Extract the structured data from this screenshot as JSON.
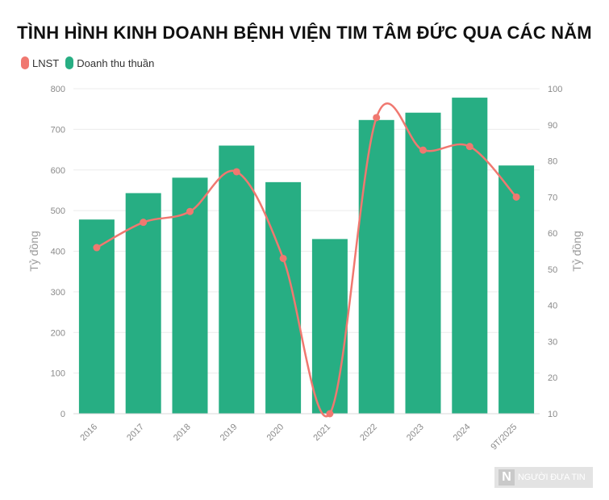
{
  "chart_data": {
    "type": "bar",
    "title": "TÌNH HÌNH KINH DOANH BỆNH VIỆN TIM TÂM ĐỨC QUA CÁC NĂM",
    "categories": [
      "2016",
      "2017",
      "2018",
      "2019",
      "2020",
      "2021",
      "2022",
      "2023",
      "2024",
      "9T/2025"
    ],
    "series": [
      {
        "name": "Doanh thu thuần",
        "type": "bar",
        "axis": "left",
        "color": "#27ae83",
        "values": [
          478,
          543,
          581,
          660,
          570,
          430,
          723,
          741,
          778,
          611
        ]
      },
      {
        "name": "LNST",
        "type": "line",
        "axis": "right",
        "color": "#f07870",
        "values": [
          56,
          63,
          66,
          77,
          53,
          10,
          92,
          83,
          84,
          70
        ]
      }
    ],
    "ylabel": "Tỷ đồng",
    "y2label": "Tỷ đồng",
    "ylim": [
      0,
      800
    ],
    "y2lim": [
      10,
      100
    ],
    "yticks": [
      0,
      100,
      200,
      300,
      400,
      500,
      600,
      700,
      800
    ],
    "y2ticks": [
      10,
      20,
      30,
      40,
      50,
      60,
      70,
      80,
      90,
      100
    ],
    "legend": "top-left",
    "grid": true
  },
  "legend": {
    "line_label": "LNST",
    "bar_label": "Doanh thu thuần"
  },
  "watermark": {
    "text": "NGƯỜI ĐƯA TIN"
  }
}
